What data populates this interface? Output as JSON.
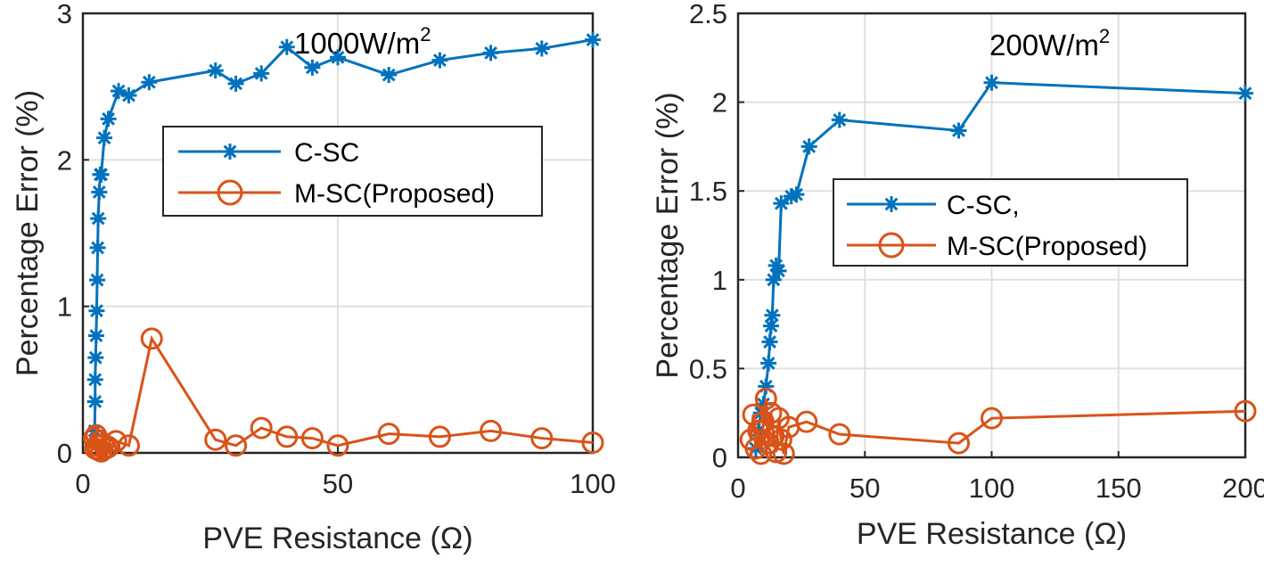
{
  "chart_data": [
    {
      "type": "line",
      "annotation": "1000W/m",
      "annotation_sup": "2",
      "xlabel": "PVE Resistance (Ω)",
      "ylabel": "Percentage Error (%)",
      "xlim": [
        0,
        100
      ],
      "ylim": [
        0,
        3
      ],
      "xticks": [
        0,
        50,
        100
      ],
      "yticks": [
        0,
        1,
        2,
        3
      ],
      "grid": true,
      "legend_position": "center-right",
      "series": [
        {
          "name": "C-SC",
          "color": "#0072BD",
          "marker": "asterisk",
          "x": [
            2.3,
            2.4,
            2.4,
            2.5,
            2.6,
            2.7,
            2.8,
            2.9,
            3.0,
            3.2,
            3.4,
            3.6,
            4.2,
            5.0,
            7.0,
            9.0,
            13,
            26,
            30,
            35,
            40,
            45,
            50,
            60,
            70,
            80,
            90,
            100
          ],
          "y": [
            0.15,
            0.35,
            0.5,
            0.65,
            0.8,
            0.97,
            1.18,
            1.4,
            1.6,
            1.78,
            1.9,
            1.9,
            2.15,
            2.28,
            2.47,
            2.44,
            2.53,
            2.61,
            2.52,
            2.59,
            2.77,
            2.63,
            2.7,
            2.58,
            2.68,
            2.73,
            2.76,
            2.82
          ]
        },
        {
          "name": "M-SC(Proposed)",
          "color": "#D95319",
          "marker": "circle",
          "x": [
            2.2,
            2.4,
            2.6,
            2.8,
            3.0,
            3.3,
            3.6,
            4.0,
            4.5,
            5.0,
            6.5,
            9.0,
            13.5,
            26,
            30,
            35,
            40,
            45,
            50,
            60,
            70,
            80,
            90,
            100
          ],
          "y": [
            0.1,
            0.03,
            0.12,
            0.05,
            0.02,
            0.08,
            0.01,
            0.06,
            0.03,
            0.04,
            0.08,
            0.05,
            0.78,
            0.09,
            0.05,
            0.17,
            0.11,
            0.1,
            0.05,
            0.13,
            0.11,
            0.15,
            0.1,
            0.07
          ]
        }
      ]
    },
    {
      "type": "line",
      "annotation": "200W/m",
      "annotation_sup": "2",
      "xlabel": "PVE Resistance (Ω)",
      "ylabel": "Percentage Error (%)",
      "xlim": [
        0,
        200
      ],
      "ylim": [
        0,
        2.5
      ],
      "xticks": [
        0,
        50,
        100,
        150,
        200
      ],
      "yticks": [
        0,
        0.5,
        1,
        1.5,
        2,
        2.5
      ],
      "grid": true,
      "legend_position": "center-right",
      "series": [
        {
          "name": "C-SC,",
          "color": "#0072BD",
          "marker": "asterisk",
          "x": [
            7,
            8,
            9,
            10,
            11,
            12,
            12.5,
            13,
            13.5,
            14,
            15,
            16,
            17,
            21,
            23,
            28,
            40,
            87,
            100,
            200
          ],
          "y": [
            0.05,
            0.15,
            0.25,
            0.3,
            0.4,
            0.53,
            0.65,
            0.74,
            0.8,
            1.0,
            1.08,
            1.05,
            1.43,
            1.47,
            1.48,
            1.75,
            1.9,
            1.84,
            2.11,
            2.05
          ]
        },
        {
          "name": "M-SC(Proposed)",
          "color": "#D95319",
          "marker": "circle",
          "x": [
            5,
            6,
            7,
            8,
            9,
            10,
            11,
            12,
            13,
            14,
            15,
            16,
            17,
            18,
            20,
            27,
            40,
            87,
            100,
            200
          ],
          "y": [
            0.1,
            0.24,
            0.05,
            0.15,
            0.02,
            0.2,
            0.33,
            0.08,
            0.25,
            0.12,
            0.03,
            0.22,
            0.1,
            0.02,
            0.17,
            0.2,
            0.13,
            0.08,
            0.22,
            0.26
          ]
        }
      ]
    }
  ]
}
